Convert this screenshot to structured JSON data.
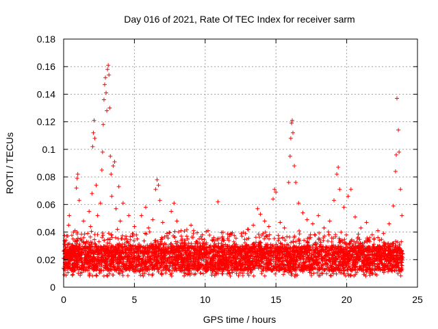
{
  "chart_data": {
    "type": "scatter",
    "title": "Day 016 of 2021, Rate Of TEC Index for receiver sarm",
    "xlabel": "GPS time / hours",
    "ylabel": "ROTI / TECUs",
    "xlim": [
      0,
      25
    ],
    "ylim": [
      0,
      0.18
    ],
    "x_ticks": [
      0,
      5,
      10,
      15,
      20,
      25
    ],
    "x_tick_labels": [
      "0",
      "5",
      "10",
      "15",
      "20",
      "25"
    ],
    "y_ticks": [
      0,
      0.02,
      0.04,
      0.06,
      0.08,
      0.1,
      0.12,
      0.14,
      0.16,
      0.18
    ],
    "y_tick_labels": [
      "0",
      "0.02",
      "0.04",
      "0.06",
      "0.08",
      "0.1",
      "0.12",
      "0.14",
      "0.16",
      "0.18"
    ],
    "grid": true,
    "marker": "+",
    "color": "#ff0000",
    "series": [
      {
        "name": "ROTI",
        "points": [
          [
            0.1,
            0.018
          ],
          [
            0.2,
            0.024
          ],
          [
            0.3,
            0.031
          ],
          [
            0.35,
            0.045
          ],
          [
            0.4,
            0.052
          ],
          [
            0.5,
            0.021
          ],
          [
            0.6,
            0.016
          ],
          [
            0.7,
            0.028
          ],
          [
            0.8,
            0.041
          ],
          [
            0.9,
            0.072
          ],
          [
            0.95,
            0.079
          ],
          [
            1.0,
            0.082
          ],
          [
            1.1,
            0.063
          ],
          [
            1.2,
            0.035
          ],
          [
            1.3,
            0.025
          ],
          [
            1.4,
            0.048
          ],
          [
            1.5,
            0.019
          ],
          [
            1.6,
            0.022
          ],
          [
            1.7,
            0.039
          ],
          [
            1.8,
            0.055
          ],
          [
            1.9,
            0.044
          ],
          [
            2.0,
            0.068
          ],
          [
            2.05,
            0.102
          ],
          [
            2.1,
            0.112
          ],
          [
            2.15,
            0.121
          ],
          [
            2.2,
            0.108
          ],
          [
            2.3,
            0.074
          ],
          [
            2.4,
            0.052
          ],
          [
            2.5,
            0.033
          ],
          [
            2.6,
            0.061
          ],
          [
            2.7,
            0.085
          ],
          [
            2.75,
            0.098
          ],
          [
            2.8,
            0.118
          ],
          [
            2.85,
            0.136
          ],
          [
            2.9,
            0.147
          ],
          [
            2.95,
            0.152
          ],
          [
            3.0,
            0.141
          ],
          [
            3.05,
            0.128
          ],
          [
            3.1,
            0.158
          ],
          [
            3.15,
            0.161
          ],
          [
            3.2,
            0.154
          ],
          [
            3.25,
            0.13
          ],
          [
            3.3,
            0.095
          ],
          [
            3.35,
            0.082
          ],
          [
            3.4,
            0.066
          ],
          [
            3.5,
            0.088
          ],
          [
            3.6,
            0.091
          ],
          [
            3.7,
            0.057
          ],
          [
            3.8,
            0.042
          ],
          [
            3.9,
            0.073
          ],
          [
            4.0,
            0.048
          ],
          [
            4.2,
            0.061
          ],
          [
            4.4,
            0.037
          ],
          [
            4.6,
            0.052
          ],
          [
            4.8,
            0.029
          ],
          [
            5.0,
            0.044
          ],
          [
            5.2,
            0.035
          ],
          [
            5.5,
            0.052
          ],
          [
            5.8,
            0.058
          ],
          [
            6.0,
            0.043
          ],
          [
            6.3,
            0.049
          ],
          [
            6.5,
            0.071
          ],
          [
            6.6,
            0.078
          ],
          [
            6.7,
            0.074
          ],
          [
            6.8,
            0.063
          ],
          [
            7.0,
            0.047
          ],
          [
            7.3,
            0.039
          ],
          [
            7.6,
            0.055
          ],
          [
            7.8,
            0.061
          ],
          [
            8.0,
            0.048
          ],
          [
            8.3,
            0.041
          ],
          [
            8.7,
            0.037
          ],
          [
            9.0,
            0.045
          ],
          [
            9.4,
            0.033
          ],
          [
            9.8,
            0.038
          ],
          [
            10.2,
            0.041
          ],
          [
            10.6,
            0.036
          ],
          [
            10.9,
            0.062
          ],
          [
            11.3,
            0.034
          ],
          [
            11.8,
            0.039
          ],
          [
            12.2,
            0.031
          ],
          [
            12.6,
            0.037
          ],
          [
            13.0,
            0.042
          ],
          [
            13.4,
            0.045
          ],
          [
            13.7,
            0.057
          ],
          [
            13.9,
            0.053
          ],
          [
            14.2,
            0.048
          ],
          [
            14.5,
            0.044
          ],
          [
            14.8,
            0.064
          ],
          [
            14.9,
            0.071
          ],
          [
            15.0,
            0.069
          ],
          [
            15.3,
            0.047
          ],
          [
            15.6,
            0.043
          ],
          [
            15.9,
            0.076
          ],
          [
            16.0,
            0.095
          ],
          [
            16.05,
            0.108
          ],
          [
            16.1,
            0.119
          ],
          [
            16.15,
            0.121
          ],
          [
            16.2,
            0.112
          ],
          [
            16.3,
            0.088
          ],
          [
            16.4,
            0.076
          ],
          [
            16.6,
            0.061
          ],
          [
            16.9,
            0.054
          ],
          [
            17.2,
            0.049
          ],
          [
            17.6,
            0.046
          ],
          [
            18.0,
            0.052
          ],
          [
            18.4,
            0.043
          ],
          [
            18.8,
            0.048
          ],
          [
            19.1,
            0.063
          ],
          [
            19.3,
            0.082
          ],
          [
            19.4,
            0.087
          ],
          [
            19.5,
            0.071
          ],
          [
            19.8,
            0.058
          ],
          [
            20.1,
            0.066
          ],
          [
            20.3,
            0.071
          ],
          [
            20.6,
            0.051
          ],
          [
            21.0,
            0.043
          ],
          [
            21.4,
            0.047
          ],
          [
            21.8,
            0.038
          ],
          [
            22.2,
            0.041
          ],
          [
            22.6,
            0.039
          ],
          [
            23.0,
            0.046
          ],
          [
            23.3,
            0.059
          ],
          [
            23.45,
            0.084
          ],
          [
            23.5,
            0.096
          ],
          [
            23.55,
            0.137
          ],
          [
            23.65,
            0.114
          ],
          [
            23.7,
            0.098
          ],
          [
            23.8,
            0.071
          ],
          [
            23.9,
            0.052
          ]
        ]
      }
    ]
  }
}
